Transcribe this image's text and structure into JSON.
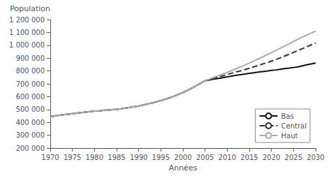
{
  "chart_data": {
    "type": "line",
    "xlabel": "Années",
    "ylabel": "Population",
    "xlim": [
      1970,
      2030
    ],
    "ylim": [
      200000,
      1200000
    ],
    "xticks": [
      1970,
      1975,
      1980,
      1985,
      1990,
      1995,
      2000,
      2005,
      2010,
      2015,
      2020,
      2025,
      2030
    ],
    "yticks": [
      {
        "value": 200000,
        "label": "200 000"
      },
      {
        "value": 300000,
        "label": "300 000"
      },
      {
        "value": 400000,
        "label": "400 000"
      },
      {
        "value": 500000,
        "label": "500 000"
      },
      {
        "value": 600000,
        "label": "600 000"
      },
      {
        "value": 700000,
        "label": "700 000"
      },
      {
        "value": 800000,
        "label": "800 000"
      },
      {
        "value": 900000,
        "label": "900 000"
      },
      {
        "value": 1000000,
        "label": "1 000 000"
      },
      {
        "value": 1100000,
        "label": "1 100 000"
      },
      {
        "value": 1200000,
        "label": "1 200 000"
      }
    ],
    "grid": false,
    "legend": "lower right",
    "x": [
      1970,
      1971,
      1972,
      1973,
      1974,
      1975,
      1976,
      1977,
      1978,
      1979,
      1980,
      1981,
      1982,
      1983,
      1984,
      1985,
      1986,
      1987,
      1988,
      1989,
      1990,
      1991,
      1992,
      1993,
      1994,
      1995,
      1996,
      1997,
      1998,
      1999,
      2000,
      2001,
      2002,
      2003,
      2004,
      2005,
      2005,
      2006,
      2007,
      2008,
      2009,
      2010,
      2011,
      2012,
      2013,
      2014,
      2015,
      2016,
      2017,
      2018,
      2019,
      2020,
      2021,
      2022,
      2023,
      2024,
      2025,
      2026,
      2027,
      2028,
      2029,
      2030
    ],
    "series": [
      {
        "name": "Bas",
        "color": "#111111",
        "line_style": "solid",
        "values": [
          445000,
          450000,
          455000,
          460000,
          464000,
          468000,
          472000,
          476000,
          480000,
          484000,
          488000,
          490000,
          493000,
          496000,
          499000,
          502000,
          506000,
          511000,
          516000,
          522000,
          528000,
          535000,
          543000,
          551000,
          560000,
          569000,
          580000,
          591000,
          604000,
          618000,
          633000,
          649000,
          666000,
          685000,
          705000,
          725000,
          725000,
          730000,
          736000,
          742000,
          748000,
          754000,
          760000,
          766000,
          771000,
          776000,
          781000,
          786000,
          791000,
          795000,
          799000,
          804000,
          808000,
          813000,
          818000,
          822000,
          827000,
          832000,
          840000,
          848000,
          855000,
          862000
        ]
      },
      {
        "name": "Central",
        "color": "#333333",
        "line_style": "dashed",
        "values": [
          445000,
          450000,
          455000,
          460000,
          464000,
          468000,
          472000,
          476000,
          480000,
          484000,
          488000,
          490000,
          493000,
          496000,
          499000,
          502000,
          506000,
          511000,
          516000,
          522000,
          528000,
          535000,
          543000,
          551000,
          560000,
          569000,
          580000,
          591000,
          604000,
          618000,
          633000,
          649000,
          666000,
          685000,
          705000,
          725000,
          725000,
          734000,
          743000,
          753000,
          762000,
          772000,
          782000,
          792000,
          801000,
          811000,
          821000,
          832000,
          843000,
          854000,
          865000,
          877000,
          889000,
          902000,
          916000,
          930000,
          945000,
          959000,
          974000,
          988000,
          1003000,
          1018000
        ]
      },
      {
        "name": "Haut",
        "color": "#aaaaaa",
        "line_style": "solid",
        "values": [
          445000,
          450000,
          455000,
          460000,
          464000,
          468000,
          472000,
          476000,
          480000,
          484000,
          488000,
          490000,
          493000,
          496000,
          499000,
          502000,
          506000,
          511000,
          516000,
          522000,
          528000,
          535000,
          543000,
          551000,
          560000,
          569000,
          580000,
          591000,
          604000,
          618000,
          633000,
          649000,
          666000,
          685000,
          705000,
          725000,
          725000,
          737000,
          750000,
          763000,
          776000,
          789000,
          803000,
          817000,
          831000,
          846000,
          861000,
          877000,
          893000,
          909000,
          926000,
          943000,
          960000,
          977000,
          994000,
          1011000,
          1029000,
          1047000,
          1065000,
          1078000,
          1095000,
          1110000
        ]
      }
    ]
  }
}
